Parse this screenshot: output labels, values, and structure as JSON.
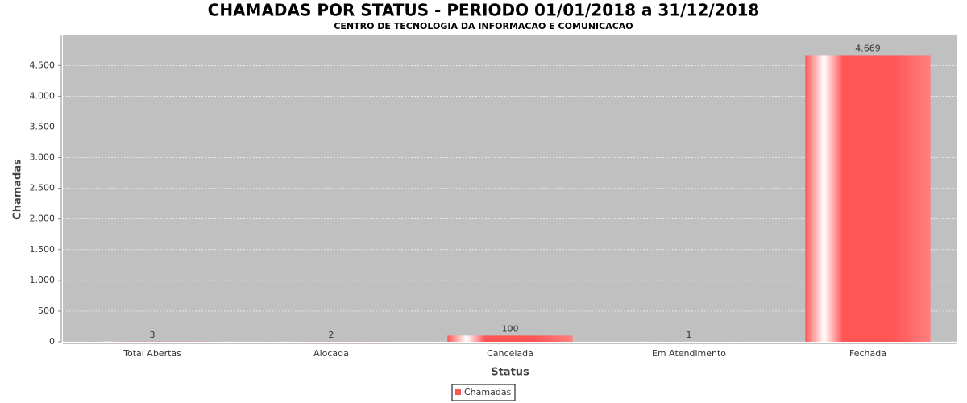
{
  "chart_data": {
    "type": "bar",
    "title": "CHAMADAS POR STATUS - PERIODO 01/01/2018 a 31/12/2018",
    "subtitle": "CENTRO DE TECNOLOGIA DA INFORMACAO E COMUNICACAO",
    "x_label": "Status",
    "y_label": "Chamadas",
    "categories": [
      "Total Abertas",
      "Alocada",
      "Cancelada",
      "Em Atendimento",
      "Fechada"
    ],
    "series": [
      {
        "name": "Chamadas",
        "color": "#ff5555",
        "values": [
          3,
          2,
          100,
          1,
          4669
        ],
        "value_labels": [
          "3",
          "2",
          "100",
          "1",
          "4.669"
        ]
      }
    ],
    "ylim": [
      0,
      4990
    ],
    "yticks": [
      0,
      500,
      {
        "value": 1000,
        "label": "1.000"
      },
      {
        "value": 1500,
        "label": "1.500"
      },
      {
        "value": 2000,
        "label": "2.000"
      },
      {
        "value": 2500,
        "label": "2.500"
      },
      {
        "value": 3000,
        "label": "3.000"
      },
      {
        "value": 3500,
        "label": "3.500"
      },
      {
        "value": 4000,
        "label": "4.000"
      },
      {
        "value": 4500,
        "label": "4.500"
      }
    ],
    "grid": true,
    "legend": "bottom"
  }
}
